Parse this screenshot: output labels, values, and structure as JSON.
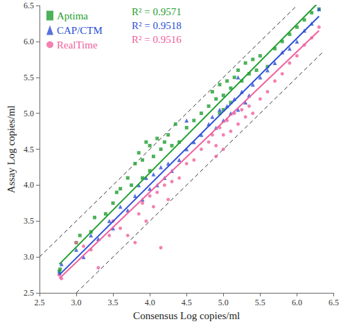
{
  "chart_data": {
    "type": "scatter",
    "xlabel": "Consensus Log copies/ml",
    "ylabel": "Assay Log copies/ml",
    "xlim": [
      2.5,
      6.5
    ],
    "xticks": [
      2.5,
      {
        "value": 3,
        "label": "3.0"
      },
      3.5,
      {
        "value": 4,
        "label": "4.0"
      },
      4.5,
      {
        "value": 5,
        "label": "5.0"
      },
      5.5,
      {
        "value": 6,
        "label": "6.0"
      },
      6.5
    ],
    "ylim": [
      2.5,
      6.5
    ],
    "yticks": [
      2.5,
      {
        "value": 3,
        "label": "3.0"
      },
      3.5,
      {
        "value": 4,
        "label": "4.0"
      },
      4.5,
      {
        "value": 5,
        "label": "5.0"
      },
      5.5,
      {
        "value": 6,
        "label": "6.0"
      },
      6.5
    ],
    "grid": false,
    "legend": "upper left",
    "reference_lines": [
      {
        "x": [
          2.5,
          6.0
        ],
        "y": [
          3.0,
          6.5
        ],
        "line_style": "dashed"
      },
      {
        "x": [
          3.0,
          6.35
        ],
        "y": [
          2.5,
          5.85
        ],
        "line_style": "dashed"
      }
    ],
    "series": [
      {
        "name": "Aptima",
        "color": "#1f9e2f",
        "marker": "square",
        "annotation": "R² = 0.9571",
        "fit": {
          "x": [
            2.77,
            6.3
          ],
          "y": [
            2.9,
            6.55
          ]
        },
        "points": [
          [
            2.77,
            2.8
          ],
          [
            2.78,
            2.83
          ],
          [
            3.0,
            3.2
          ],
          [
            3.05,
            3.3
          ],
          [
            3.2,
            3.35
          ],
          [
            3.25,
            3.55
          ],
          [
            3.4,
            3.6
          ],
          [
            3.5,
            3.75
          ],
          [
            3.55,
            3.9
          ],
          [
            3.6,
            3.95
          ],
          [
            3.7,
            4.1
          ],
          [
            3.75,
            4.0
          ],
          [
            3.8,
            4.3
          ],
          [
            3.85,
            4.45
          ],
          [
            3.9,
            4.35
          ],
          [
            3.95,
            4.6
          ],
          [
            4.0,
            4.55
          ],
          [
            4.05,
            4.4
          ],
          [
            4.1,
            4.65
          ],
          [
            4.15,
            4.5
          ],
          [
            4.2,
            4.6
          ],
          [
            4.25,
            4.7
          ],
          [
            4.3,
            4.55
          ],
          [
            4.35,
            4.85
          ],
          [
            4.4,
            4.6
          ],
          [
            4.5,
            4.8
          ],
          [
            4.6,
            4.9
          ],
          [
            4.7,
            5.0
          ],
          [
            4.8,
            5.1
          ],
          [
            4.85,
            5.3
          ],
          [
            4.9,
            5.2
          ],
          [
            4.95,
            5.4
          ],
          [
            5.0,
            5.25
          ],
          [
            5.05,
            5.45
          ],
          [
            5.1,
            5.35
          ],
          [
            5.15,
            5.5
          ],
          [
            5.2,
            5.6
          ],
          [
            5.25,
            5.45
          ],
          [
            5.3,
            5.7
          ],
          [
            5.35,
            5.55
          ],
          [
            5.4,
            5.75
          ],
          [
            5.45,
            5.6
          ],
          [
            5.5,
            5.8
          ],
          [
            5.6,
            5.65
          ],
          [
            5.7,
            5.9
          ],
          [
            5.8,
            6.0
          ],
          [
            5.9,
            6.1
          ],
          [
            6.0,
            6.2
          ],
          [
            6.1,
            6.3
          ],
          [
            6.2,
            6.4
          ],
          [
            6.3,
            6.45
          ],
          [
            4.0,
            4.2
          ],
          [
            3.9,
            4.1
          ],
          [
            5.0,
            5.05
          ],
          [
            5.1,
            5.15
          ],
          [
            4.95,
            5.0
          ]
        ]
      },
      {
        "name": "CAP/CTM",
        "color": "#2b4fd6",
        "marker": "triangle",
        "annotation": "R² = 0.9518",
        "fit": {
          "x": [
            2.77,
            6.3
          ],
          "y": [
            2.75,
            6.35
          ]
        },
        "points": [
          [
            2.77,
            2.78
          ],
          [
            2.8,
            2.9
          ],
          [
            3.0,
            3.1
          ],
          [
            3.1,
            3.0
          ],
          [
            3.2,
            3.3
          ],
          [
            3.3,
            3.25
          ],
          [
            3.45,
            3.5
          ],
          [
            3.5,
            3.4
          ],
          [
            3.6,
            3.7
          ],
          [
            3.7,
            3.65
          ],
          [
            3.8,
            3.85
          ],
          [
            3.85,
            4.0
          ],
          [
            3.9,
            3.8
          ],
          [
            3.95,
            4.1
          ],
          [
            4.0,
            3.95
          ],
          [
            4.05,
            4.15
          ],
          [
            4.1,
            4.0
          ],
          [
            4.15,
            4.25
          ],
          [
            4.2,
            4.1
          ],
          [
            4.25,
            4.3
          ],
          [
            4.3,
            4.2
          ],
          [
            4.4,
            4.35
          ],
          [
            4.5,
            4.5
          ],
          [
            4.6,
            4.6
          ],
          [
            4.7,
            4.7
          ],
          [
            4.8,
            4.85
          ],
          [
            4.85,
            4.95
          ],
          [
            4.9,
            4.8
          ],
          [
            4.95,
            5.05
          ],
          [
            5.0,
            4.9
          ],
          [
            5.05,
            5.1
          ],
          [
            5.1,
            5.0
          ],
          [
            5.15,
            5.2
          ],
          [
            5.2,
            5.05
          ],
          [
            5.25,
            5.3
          ],
          [
            5.3,
            5.15
          ],
          [
            5.35,
            5.25
          ],
          [
            5.4,
            5.4
          ],
          [
            5.5,
            5.5
          ],
          [
            5.6,
            5.6
          ],
          [
            5.7,
            5.7
          ],
          [
            5.8,
            5.85
          ],
          [
            5.9,
            5.9
          ],
          [
            6.0,
            6.0
          ],
          [
            6.1,
            6.15
          ],
          [
            6.2,
            6.25
          ],
          [
            6.3,
            6.45
          ],
          [
            4.5,
            4.9
          ],
          [
            5.2,
            5.5
          ]
        ]
      },
      {
        "name": "RealTime",
        "color": "#f0609e",
        "marker": "circle",
        "annotation": "R² = 0.9516",
        "fit": {
          "x": [
            2.77,
            6.3
          ],
          "y": [
            2.7,
            6.15
          ]
        },
        "points": [
          [
            2.77,
            2.75
          ],
          [
            2.8,
            2.7
          ],
          [
            3.0,
            3.2
          ],
          [
            3.1,
            3.15
          ],
          [
            3.2,
            3.1
          ],
          [
            3.3,
            2.85
          ],
          [
            3.45,
            3.3
          ],
          [
            3.5,
            3.5
          ],
          [
            3.6,
            3.4
          ],
          [
            3.7,
            3.3
          ],
          [
            3.8,
            3.2
          ],
          [
            3.85,
            3.6
          ],
          [
            3.9,
            3.75
          ],
          [
            3.95,
            3.5
          ],
          [
            4.0,
            3.85
          ],
          [
            4.05,
            3.7
          ],
          [
            4.1,
            3.9
          ],
          [
            4.15,
            3.13
          ],
          [
            4.2,
            4.0
          ],
          [
            4.25,
            3.8
          ],
          [
            4.3,
            4.05
          ],
          [
            4.4,
            4.1
          ],
          [
            4.5,
            4.3
          ],
          [
            4.6,
            4.35
          ],
          [
            4.7,
            4.5
          ],
          [
            4.8,
            4.6
          ],
          [
            4.85,
            4.7
          ],
          [
            4.9,
            4.55
          ],
          [
            4.95,
            4.8
          ],
          [
            5.0,
            4.7
          ],
          [
            5.05,
            4.9
          ],
          [
            5.1,
            4.75
          ],
          [
            5.15,
            5.0
          ],
          [
            5.2,
            4.85
          ],
          [
            5.25,
            5.05
          ],
          [
            5.3,
            4.95
          ],
          [
            5.35,
            5.1
          ],
          [
            5.4,
            5.0
          ],
          [
            5.5,
            5.2
          ],
          [
            5.6,
            5.3
          ],
          [
            5.7,
            5.45
          ],
          [
            5.8,
            5.55
          ],
          [
            5.9,
            5.7
          ],
          [
            6.0,
            5.8
          ],
          [
            6.1,
            5.95
          ],
          [
            6.2,
            6.05
          ],
          [
            6.3,
            6.2
          ],
          [
            4.9,
            4.4
          ],
          [
            5.0,
            4.5
          ]
        ]
      }
    ]
  }
}
